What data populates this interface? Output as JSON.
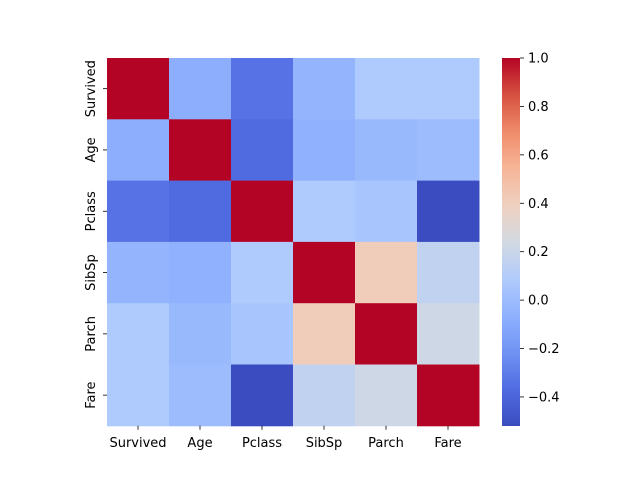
{
  "chart_data": {
    "type": "heatmap",
    "title": "",
    "xlabel": "",
    "ylabel": "",
    "x_categories": [
      "Survived",
      "Age",
      "Pclass",
      "SibSp",
      "Parch",
      "Fare"
    ],
    "y_categories": [
      "Survived",
      "Age",
      "Pclass",
      "SibSp",
      "Parch",
      "Fare"
    ],
    "values": [
      [
        1.0,
        -0.08,
        -0.34,
        -0.04,
        0.08,
        0.08
      ],
      [
        -0.08,
        1.0,
        -0.37,
        -0.06,
        -0.02,
        0.0
      ],
      [
        -0.34,
        -0.37,
        1.0,
        0.08,
        0.05,
        -0.52
      ],
      [
        -0.04,
        -0.06,
        0.08,
        1.0,
        0.41,
        0.16
      ],
      [
        0.08,
        -0.02,
        0.05,
        0.41,
        1.0,
        0.22
      ],
      [
        0.08,
        0.0,
        -0.52,
        0.16,
        0.22,
        1.0
      ]
    ],
    "colormap": "coolwarm",
    "vmin": -0.52,
    "vmax": 1.0,
    "colorbar_ticks": [
      "1.0",
      "0.8",
      "0.6",
      "0.4",
      "0.2",
      "0.0",
      "−0.2",
      "−0.4"
    ],
    "colorbar_tick_values": [
      1.0,
      0.8,
      0.6,
      0.4,
      0.2,
      0.0,
      -0.2,
      -0.4
    ]
  }
}
